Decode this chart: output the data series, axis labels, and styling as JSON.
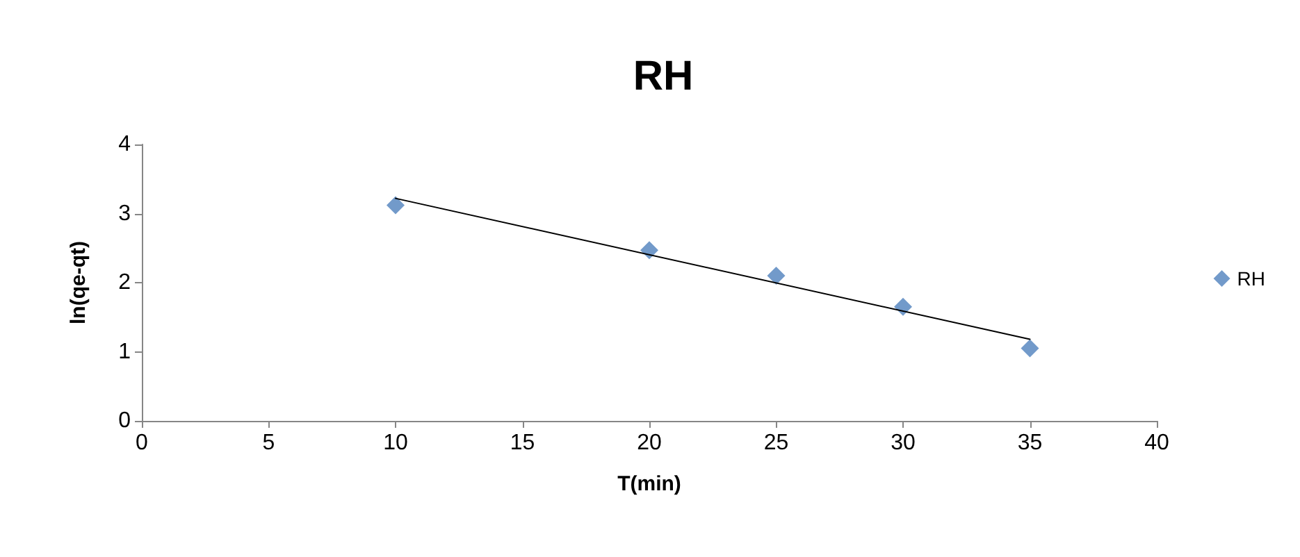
{
  "chart_data": {
    "type": "scatter",
    "title": "RH",
    "xlabel": "T(min)",
    "ylabel": "ln(qe-qt)",
    "x": [
      10,
      20,
      25,
      30,
      35
    ],
    "series": [
      {
        "name": "RH",
        "color": "#4f81bd",
        "values": [
          3.12,
          2.47,
          2.1,
          1.65,
          1.05
        ],
        "marker": "diamond"
      },
      {
        "type": "line",
        "color": "#000000",
        "x": [
          10,
          35
        ],
        "values": [
          3.22,
          1.18
        ],
        "marker": "none",
        "line_style": "solid"
      }
    ],
    "xlim": [
      0,
      40
    ],
    "xticks": [
      0,
      5,
      10,
      15,
      20,
      25,
      30,
      35,
      40
    ],
    "ylim": [
      0,
      4
    ],
    "yticks": [
      0,
      1,
      2,
      3,
      4
    ],
    "grid": false,
    "legend": "right"
  }
}
